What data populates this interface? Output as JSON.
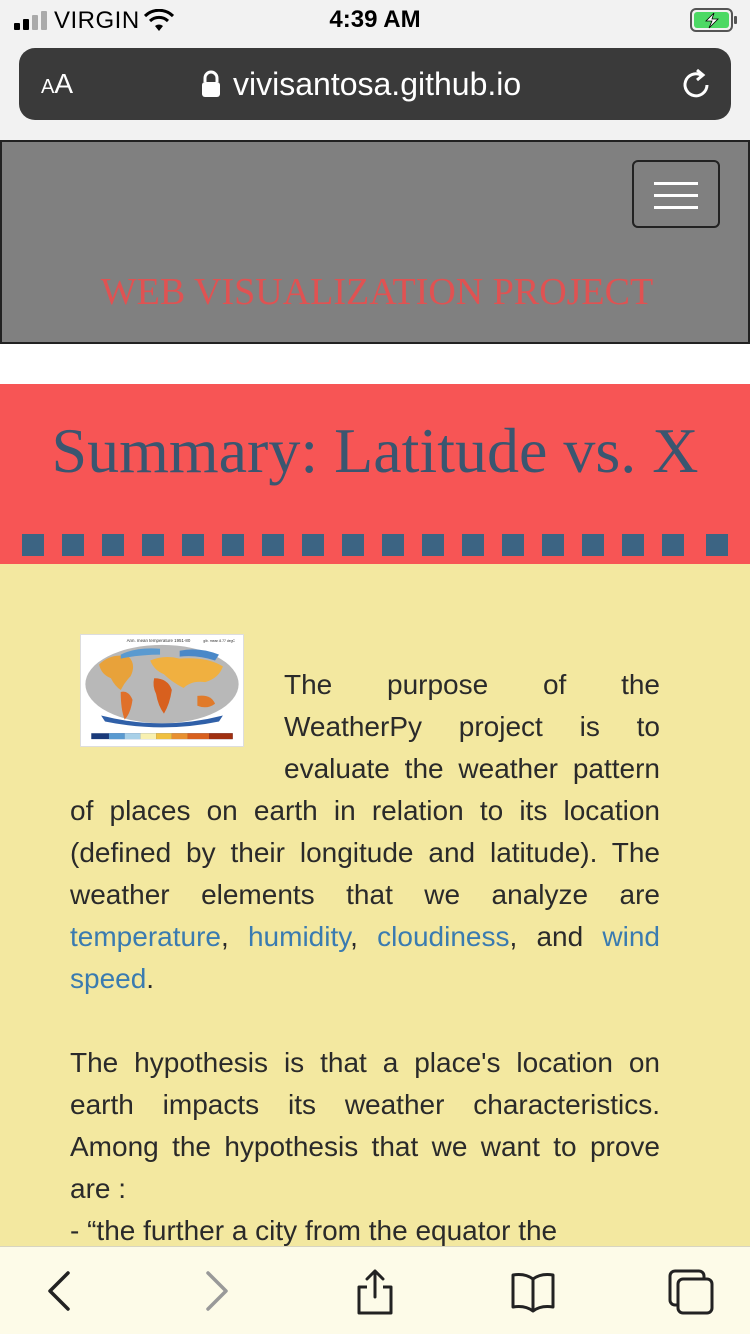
{
  "status_bar": {
    "carrier": "VIRGIN",
    "time": "4:39 AM"
  },
  "browser": {
    "text_size_label_small": "A",
    "text_size_label_large": "A",
    "url": "vivisantosa.github.io"
  },
  "site": {
    "brand": "WEB VISUALIZATION PROJECT",
    "banner_title": "Summary: Latitude vs. X"
  },
  "content": {
    "paragraph1": {
      "intro": "The purpose of the WeatherPy project is to evaluate the weather pattern of places on earth in relation to its location (defined by their longitude and latitude). The weather elements that we analyze are ",
      "link_temperature": "temperature",
      "sep1": ", ",
      "link_humidity": "humidity",
      "sep2": ", ",
      "link_cloudiness": "cloudiness",
      "sep3": ", and ",
      "link_wind": "wind speed",
      "end": "."
    },
    "paragraph2": {
      "line1": "The hypothesis is that a place's location on earth impacts its weather characteristics. Among the hypothesis that we want to prove are :",
      "line2": "- “the further a city from the equator the"
    },
    "map_image": {
      "title": "Ann. mean temperature 1951-80",
      "note": "glb. mean 8.77 degC"
    }
  },
  "colors": {
    "header_bg": "#808080",
    "brand": "#e05252",
    "banner_bg": "#f75555",
    "banner_text": "#3a5670",
    "content_bg": "#f3e8a0",
    "link": "#3a7bb0"
  }
}
